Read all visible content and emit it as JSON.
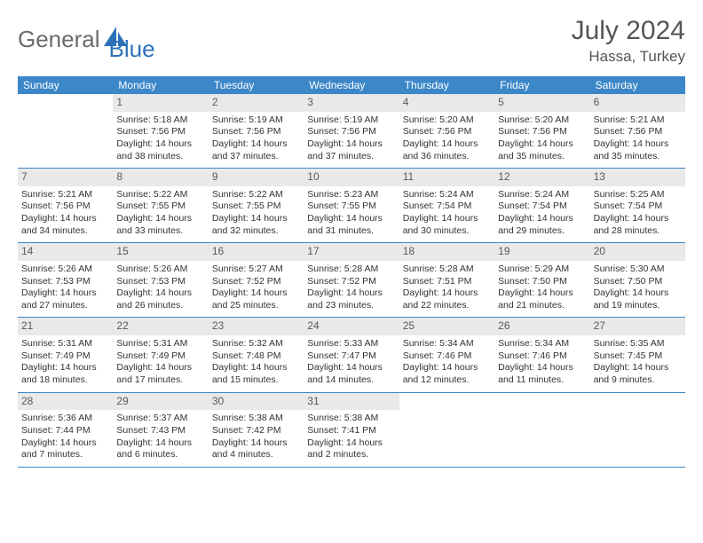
{
  "brand": {
    "part1": "General",
    "part2": "Blue"
  },
  "title": "July 2024",
  "location": "Hassa, Turkey",
  "header_bg": "#3b87c8",
  "daynum_bg": "#e9e9e9",
  "dayNames": [
    "Sunday",
    "Monday",
    "Tuesday",
    "Wednesday",
    "Thursday",
    "Friday",
    "Saturday"
  ],
  "weeks": [
    [
      null,
      {
        "n": "1",
        "sr": "5:18 AM",
        "ss": "7:56 PM",
        "dl": "14 hours and 38 minutes."
      },
      {
        "n": "2",
        "sr": "5:19 AM",
        "ss": "7:56 PM",
        "dl": "14 hours and 37 minutes."
      },
      {
        "n": "3",
        "sr": "5:19 AM",
        "ss": "7:56 PM",
        "dl": "14 hours and 37 minutes."
      },
      {
        "n": "4",
        "sr": "5:20 AM",
        "ss": "7:56 PM",
        "dl": "14 hours and 36 minutes."
      },
      {
        "n": "5",
        "sr": "5:20 AM",
        "ss": "7:56 PM",
        "dl": "14 hours and 35 minutes."
      },
      {
        "n": "6",
        "sr": "5:21 AM",
        "ss": "7:56 PM",
        "dl": "14 hours and 35 minutes."
      }
    ],
    [
      {
        "n": "7",
        "sr": "5:21 AM",
        "ss": "7:56 PM",
        "dl": "14 hours and 34 minutes."
      },
      {
        "n": "8",
        "sr": "5:22 AM",
        "ss": "7:55 PM",
        "dl": "14 hours and 33 minutes."
      },
      {
        "n": "9",
        "sr": "5:22 AM",
        "ss": "7:55 PM",
        "dl": "14 hours and 32 minutes."
      },
      {
        "n": "10",
        "sr": "5:23 AM",
        "ss": "7:55 PM",
        "dl": "14 hours and 31 minutes."
      },
      {
        "n": "11",
        "sr": "5:24 AM",
        "ss": "7:54 PM",
        "dl": "14 hours and 30 minutes."
      },
      {
        "n": "12",
        "sr": "5:24 AM",
        "ss": "7:54 PM",
        "dl": "14 hours and 29 minutes."
      },
      {
        "n": "13",
        "sr": "5:25 AM",
        "ss": "7:54 PM",
        "dl": "14 hours and 28 minutes."
      }
    ],
    [
      {
        "n": "14",
        "sr": "5:26 AM",
        "ss": "7:53 PM",
        "dl": "14 hours and 27 minutes."
      },
      {
        "n": "15",
        "sr": "5:26 AM",
        "ss": "7:53 PM",
        "dl": "14 hours and 26 minutes."
      },
      {
        "n": "16",
        "sr": "5:27 AM",
        "ss": "7:52 PM",
        "dl": "14 hours and 25 minutes."
      },
      {
        "n": "17",
        "sr": "5:28 AM",
        "ss": "7:52 PM",
        "dl": "14 hours and 23 minutes."
      },
      {
        "n": "18",
        "sr": "5:28 AM",
        "ss": "7:51 PM",
        "dl": "14 hours and 22 minutes."
      },
      {
        "n": "19",
        "sr": "5:29 AM",
        "ss": "7:50 PM",
        "dl": "14 hours and 21 minutes."
      },
      {
        "n": "20",
        "sr": "5:30 AM",
        "ss": "7:50 PM",
        "dl": "14 hours and 19 minutes."
      }
    ],
    [
      {
        "n": "21",
        "sr": "5:31 AM",
        "ss": "7:49 PM",
        "dl": "14 hours and 18 minutes."
      },
      {
        "n": "22",
        "sr": "5:31 AM",
        "ss": "7:49 PM",
        "dl": "14 hours and 17 minutes."
      },
      {
        "n": "23",
        "sr": "5:32 AM",
        "ss": "7:48 PM",
        "dl": "14 hours and 15 minutes."
      },
      {
        "n": "24",
        "sr": "5:33 AM",
        "ss": "7:47 PM",
        "dl": "14 hours and 14 minutes."
      },
      {
        "n": "25",
        "sr": "5:34 AM",
        "ss": "7:46 PM",
        "dl": "14 hours and 12 minutes."
      },
      {
        "n": "26",
        "sr": "5:34 AM",
        "ss": "7:46 PM",
        "dl": "14 hours and 11 minutes."
      },
      {
        "n": "27",
        "sr": "5:35 AM",
        "ss": "7:45 PM",
        "dl": "14 hours and 9 minutes."
      }
    ],
    [
      {
        "n": "28",
        "sr": "5:36 AM",
        "ss": "7:44 PM",
        "dl": "14 hours and 7 minutes."
      },
      {
        "n": "29",
        "sr": "5:37 AM",
        "ss": "7:43 PM",
        "dl": "14 hours and 6 minutes."
      },
      {
        "n": "30",
        "sr": "5:38 AM",
        "ss": "7:42 PM",
        "dl": "14 hours and 4 minutes."
      },
      {
        "n": "31",
        "sr": "5:38 AM",
        "ss": "7:41 PM",
        "dl": "14 hours and 2 minutes."
      },
      null,
      null,
      null
    ]
  ],
  "labels": {
    "sunrise": "Sunrise:",
    "sunset": "Sunset:",
    "daylight": "Daylight:"
  }
}
